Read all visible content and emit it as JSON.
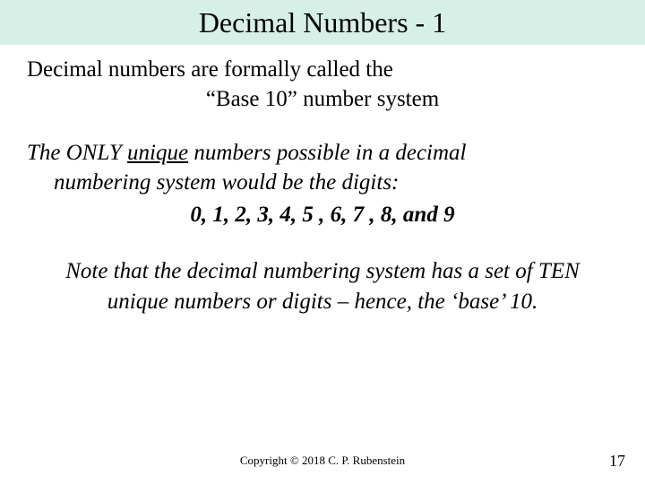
{
  "title": "Decimal Numbers - 1",
  "body": {
    "line1": "Decimal numbers are formally called the",
    "line2": "“Base 10” number system",
    "para2_a": "The ONLY ",
    "para2_unique": "unique",
    "para2_b": " numbers possible in a decimal",
    "para2_c": "numbering system would be the digits:",
    "digits": "0, 1, 2, 3, 4, 5 , 6, 7 , 8, and 9",
    "para3": "Note that the decimal numbering system has a set of TEN unique numbers or digits – hence, the ‘base’ 10."
  },
  "footer": {
    "copyright": "Copyright © 2018 C. P. Rubenstein",
    "pagenum": "17"
  },
  "colors": {
    "title_bg": "#d6f0e8",
    "page_bg": "#ffffff",
    "text": "#000000"
  }
}
